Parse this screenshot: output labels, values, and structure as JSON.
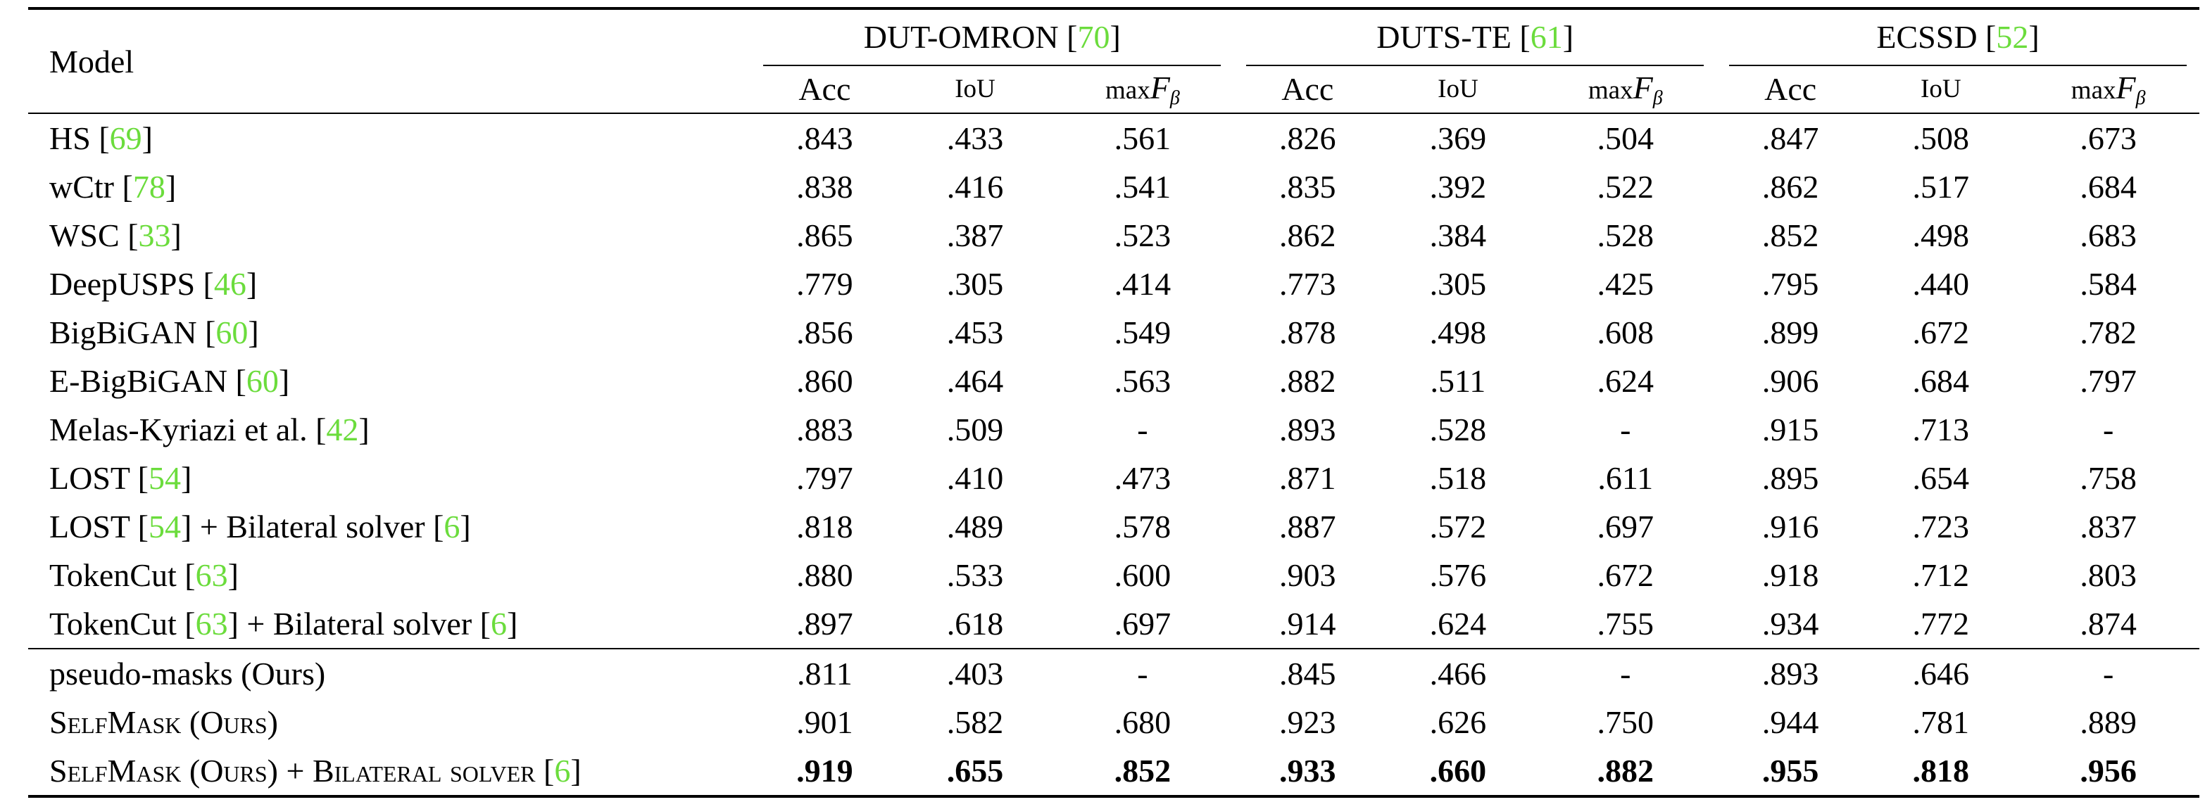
{
  "header": {
    "model_label": "Model",
    "groups": [
      {
        "name": "DUT-OMRON",
        "ref": "70"
      },
      {
        "name": "DUTS-TE",
        "ref": "61"
      },
      {
        "name": "ECSSD",
        "ref": "52"
      }
    ],
    "metrics": {
      "acc": "Acc",
      "iou": "IoU",
      "maxf_prefix": "max",
      "maxf_var": "F",
      "maxf_sub": "β"
    }
  },
  "rows": [
    {
      "name": "HS",
      "refs": [
        "69"
      ],
      "name_suffix": "",
      "values": [
        ".843",
        ".433",
        ".561",
        ".826",
        ".369",
        ".504",
        ".847",
        ".508",
        ".673"
      ]
    },
    {
      "name": "wCtr",
      "refs": [
        "78"
      ],
      "values": [
        ".838",
        ".416",
        ".541",
        ".835",
        ".392",
        ".522",
        ".862",
        ".517",
        ".684"
      ]
    },
    {
      "name": "WSC",
      "refs": [
        "33"
      ],
      "values": [
        ".865",
        ".387",
        ".523",
        ".862",
        ".384",
        ".528",
        ".852",
        ".498",
        ".683"
      ]
    },
    {
      "name": "DeepUSPS",
      "refs": [
        "46"
      ],
      "values": [
        ".779",
        ".305",
        ".414",
        ".773",
        ".305",
        ".425",
        ".795",
        ".440",
        ".584"
      ]
    },
    {
      "name": "BigBiGAN",
      "refs": [
        "60"
      ],
      "values": [
        ".856",
        ".453",
        ".549",
        ".878",
        ".498",
        ".608",
        ".899",
        ".672",
        ".782"
      ]
    },
    {
      "name": "E-BigBiGAN",
      "refs": [
        "60"
      ],
      "values": [
        ".860",
        ".464",
        ".563",
        ".882",
        ".511",
        ".624",
        ".906",
        ".684",
        ".797"
      ]
    },
    {
      "name": "Melas-Kyriazi et al.",
      "refs": [
        "42"
      ],
      "values": [
        ".883",
        ".509",
        "-",
        ".893",
        ".528",
        "-",
        ".915",
        ".713",
        "-"
      ]
    },
    {
      "name": "LOST",
      "refs": [
        "54"
      ],
      "values": [
        ".797",
        ".410",
        ".473",
        ".871",
        ".518",
        ".611",
        ".895",
        ".654",
        ".758"
      ]
    },
    {
      "name": "LOST",
      "refs": [
        "54"
      ],
      "mid_text": " + Bilateral solver ",
      "refs2": [
        "6"
      ],
      "values": [
        ".818",
        ".489",
        ".578",
        ".887",
        ".572",
        ".697",
        ".916",
        ".723",
        ".837"
      ]
    },
    {
      "name": "TokenCut",
      "refs": [
        "63"
      ],
      "values": [
        ".880",
        ".533",
        ".600",
        ".903",
        ".576",
        ".672",
        ".918",
        ".712",
        ".803"
      ]
    },
    {
      "name": "TokenCut",
      "refs": [
        "63"
      ],
      "mid_text": " + Bilateral solver ",
      "refs2": [
        "6"
      ],
      "values": [
        ".897",
        ".618",
        ".697",
        ".914",
        ".624",
        ".755",
        ".934",
        ".772",
        ".874"
      ]
    },
    {
      "name": "pseudo-masks (Ours)",
      "values": [
        ".811",
        ".403",
        "-",
        ".845",
        ".466",
        "-",
        ".893",
        ".646",
        "-"
      ]
    },
    {
      "name": "SelfMask (Ours)",
      "values": [
        ".901",
        ".582",
        ".680",
        ".923",
        ".626",
        ".750",
        ".944",
        ".781",
        ".889"
      ]
    },
    {
      "name": "SelfMask (Ours) + Bilateral solver",
      "refs": [
        "6"
      ],
      "values": [
        ".919",
        ".655",
        ".852",
        ".933",
        ".660",
        ".882",
        ".955",
        ".818",
        ".956"
      ]
    }
  ],
  "colors": {
    "reference_link": "#6bdc3c",
    "text": "#000000",
    "background": "#ffffff"
  }
}
